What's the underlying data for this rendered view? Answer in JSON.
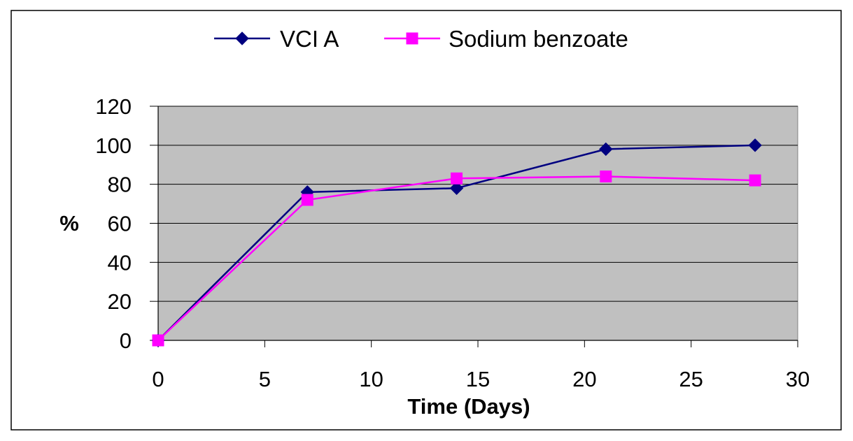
{
  "chart_data": {
    "type": "line",
    "xlabel": "Time (Days)",
    "ylabel": "%",
    "xlim": [
      0,
      30
    ],
    "ylim": [
      0,
      120
    ],
    "x_ticks": [
      0,
      5,
      10,
      15,
      20,
      25,
      30
    ],
    "y_ticks": [
      0,
      20,
      40,
      60,
      80,
      100,
      120
    ],
    "grid": "horizontal",
    "legend_position": "top",
    "plot_background": "#c0c0c0",
    "series": [
      {
        "name": "VCI A",
        "color": "#000080",
        "marker": "diamond",
        "x": [
          0,
          7,
          14,
          21,
          28
        ],
        "y": [
          0,
          76,
          78,
          98,
          100
        ]
      },
      {
        "name": "Sodium benzoate",
        "color": "#ff00ff",
        "marker": "square",
        "x": [
          0,
          7,
          14,
          21,
          28
        ],
        "y": [
          0,
          72,
          83,
          84,
          82
        ]
      }
    ]
  }
}
